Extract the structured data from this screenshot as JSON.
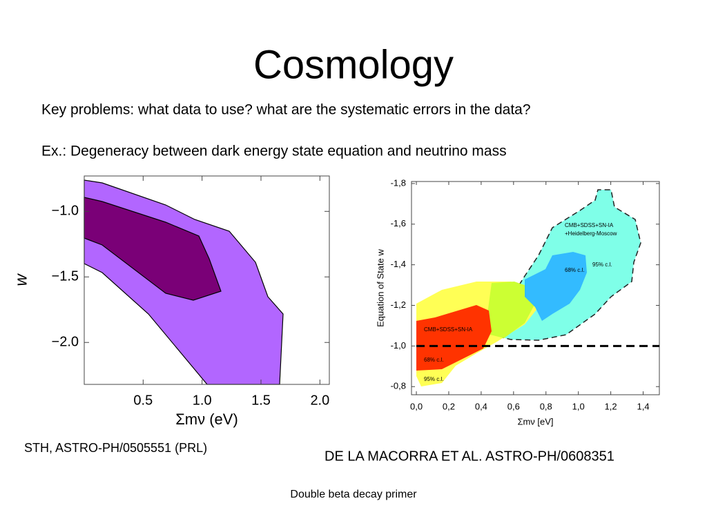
{
  "slide": {
    "title": "Cosmology",
    "lines": [
      "Key problems: what data to use? what are the systematic errors in the data?",
      "Ex.: Degeneracy between dark energy state equation and neutrino mass"
    ],
    "captions": [
      "STH, ASTRO-PH/0505551 (PRL)",
      "DE LA MACORRA ET AL. ASTRO-PH/0608351"
    ],
    "footer": "Double beta decay primer"
  },
  "chart_data": [
    {
      "type": "contour",
      "xlabel": "Σmν (eV)",
      "ylabel": "w",
      "xlim": [
        0,
        2.08
      ],
      "ylim": [
        -2.32,
        -0.73
      ],
      "xticks": [
        0.5,
        {
          "value": 1,
          "label": "1.0"
        },
        1.5,
        {
          "value": 2,
          "label": "2.0"
        }
      ],
      "yticks": [
        {
          "value": -1,
          "label": "−1.0"
        },
        {
          "value": -1.5,
          "label": "−1.5"
        },
        {
          "value": -2,
          "label": "−2.0"
        }
      ]
    },
    {
      "type": "contour",
      "xlabel": "Σmν [eV]",
      "ylabel": "Equation of State w",
      "xlim": [
        -0.03,
        1.5
      ],
      "ylim": [
        -0.76,
        -1.81
      ],
      "xticks": [
        {
          "value": 0,
          "label": "0,0"
        },
        {
          "value": 0.2,
          "label": "0,2"
        },
        {
          "value": 0.4,
          "label": "0,4"
        },
        {
          "value": 0.6,
          "label": "0,6"
        },
        {
          "value": 0.8,
          "label": "0,8"
        },
        {
          "value": 1,
          "label": "1,0"
        },
        {
          "value": 1.2,
          "label": "1,2"
        },
        {
          "value": 1.4,
          "label": "1,4"
        }
      ],
      "yticks": [
        {
          "value": -1.8,
          "label": "-1,8"
        },
        {
          "value": -1.6,
          "label": "-1,6"
        },
        {
          "value": -1.4,
          "label": "-1,4"
        },
        {
          "value": -1.2,
          "label": "-1,2"
        },
        {
          "value": -1,
          "label": "-1,0"
        },
        {
          "value": -0.8,
          "label": "-0,8"
        }
      ],
      "reference_line": -1,
      "annotations": [
        "CMB+SDSS+SN-IA",
        "+Heidelberg-Moscow",
        "95% c.l.",
        "68% c.l.",
        "CMB+SDSS+SN-IA",
        "68% c.l.",
        "95% c.l."
      ]
    }
  ]
}
